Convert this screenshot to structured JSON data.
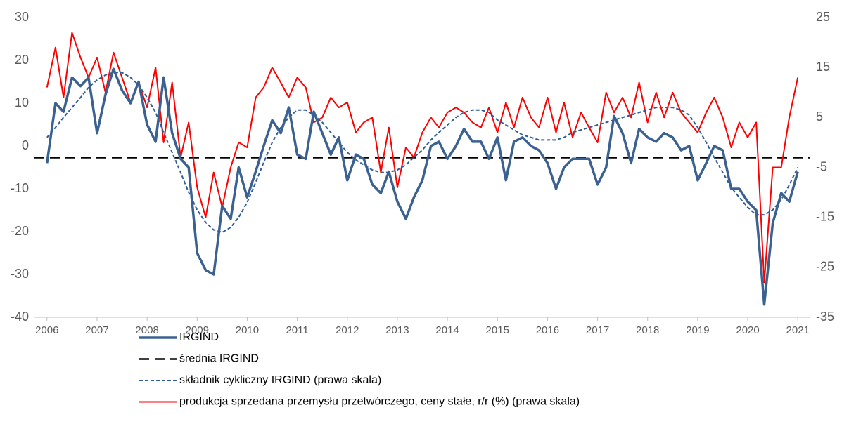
{
  "chart_data": {
    "type": "line",
    "x": [
      2006,
      2006.17,
      2006.33,
      2006.5,
      2006.67,
      2006.83,
      2007,
      2007.17,
      2007.33,
      2007.5,
      2007.67,
      2007.83,
      2008,
      2008.17,
      2008.33,
      2008.5,
      2008.67,
      2008.83,
      2009,
      2009.17,
      2009.33,
      2009.5,
      2009.67,
      2009.83,
      2010,
      2010.17,
      2010.33,
      2010.5,
      2010.67,
      2010.83,
      2011,
      2011.17,
      2011.33,
      2011.5,
      2011.67,
      2011.83,
      2012,
      2012.17,
      2012.33,
      2012.5,
      2012.67,
      2012.83,
      2013,
      2013.17,
      2013.33,
      2013.5,
      2013.67,
      2013.83,
      2014,
      2014.17,
      2014.33,
      2014.5,
      2014.67,
      2014.83,
      2015,
      2015.17,
      2015.33,
      2015.5,
      2015.67,
      2015.83,
      2016,
      2016.17,
      2016.33,
      2016.5,
      2016.67,
      2016.83,
      2017,
      2017.17,
      2017.33,
      2017.5,
      2017.67,
      2017.83,
      2018,
      2018.17,
      2018.33,
      2018.5,
      2018.67,
      2018.83,
      2019,
      2019.17,
      2019.33,
      2019.5,
      2019.67,
      2019.83,
      2020,
      2020.17,
      2020.33,
      2020.5,
      2020.67,
      2020.83,
      2021
    ],
    "xlim": [
      2005.75,
      2021.25
    ],
    "xticks": [
      2006,
      2007,
      2008,
      2009,
      2010,
      2011,
      2012,
      2013,
      2014,
      2015,
      2016,
      2017,
      2018,
      2019,
      2020,
      2021
    ],
    "ylim": [
      -40,
      30
    ],
    "yticks": [
      -40,
      -30,
      -20,
      -10,
      0,
      10,
      20,
      30
    ],
    "y2lim": [
      -35,
      25
    ],
    "y2ticks": [
      -35,
      -25,
      -15,
      -5,
      5,
      15,
      25
    ],
    "series": [
      {
        "name": "IRGIND",
        "color": "#3b6190",
        "style": "thick",
        "values": [
          -4,
          10,
          8,
          16,
          14,
          16,
          3,
          12,
          18,
          13,
          10,
          15,
          5,
          1,
          16,
          3,
          -3,
          -5,
          -25,
          -29,
          -30,
          -14,
          -17,
          -5,
          -12,
          -6,
          0,
          6,
          3,
          9,
          -2,
          -3,
          8,
          3,
          -2,
          2,
          -8,
          -2,
          -3,
          -9,
          -11,
          -6,
          -13,
          -17,
          -12,
          -8,
          0,
          1,
          -3,
          0,
          4,
          1,
          1,
          -3,
          2,
          -8,
          1,
          2,
          0,
          -1,
          -4,
          -10,
          -5,
          -3,
          -3,
          -3,
          -9,
          -5,
          7,
          3,
          -4,
          4,
          2,
          1,
          3,
          2,
          -1,
          0,
          -8,
          -4,
          0,
          -1,
          -10,
          -10,
          -13,
          -15,
          -37,
          -18,
          -11,
          -13,
          -6
        ]
      },
      {
        "name": "składnik cykliczny IRGIND (prawa skala)",
        "color": "#2e5c9a",
        "style": "dotted",
        "axis": "y2",
        "values": [
          1,
          3,
          5,
          7,
          9,
          11,
          12.5,
          13.5,
          14,
          14,
          13,
          11.5,
          9,
          6,
          2,
          -2,
          -6,
          -10,
          -13.5,
          -16,
          -17.5,
          -18,
          -17,
          -15,
          -12,
          -8,
          -4,
          0,
          3,
          5,
          6.5,
          6.5,
          5.5,
          4,
          2,
          0,
          -2,
          -3.5,
          -4.5,
          -5.5,
          -6,
          -6,
          -5.5,
          -4.5,
          -3,
          -1.5,
          0.5,
          2,
          3.5,
          5,
          6,
          6.5,
          6.5,
          6,
          4.5,
          3.5,
          2.5,
          1.5,
          1,
          0.5,
          0.5,
          0.5,
          1,
          2,
          2.5,
          3,
          3.5,
          4,
          4.5,
          5,
          5.5,
          6,
          6.5,
          7,
          7,
          7,
          6.5,
          5.5,
          3,
          0,
          -3,
          -6,
          -9,
          -11,
          -13,
          -14.5,
          -14.5,
          -13.5,
          -11.5,
          -8.5,
          -5
        ]
      },
      {
        "name": "produkcja sprzedana przemysłu przetwórczego, ceny stałe, r/r (%) (prawa skala)",
        "color": "#ff0000",
        "style": "solid",
        "axis": "y2",
        "values": [
          11,
          19,
          9,
          22,
          17,
          13,
          17,
          10,
          18,
          13,
          8,
          12,
          7,
          15,
          0,
          12,
          -3,
          4,
          -9,
          -15,
          -6,
          -13,
          -5,
          0,
          -1,
          9,
          11,
          15,
          12,
          9,
          13,
          11,
          4,
          5,
          9,
          7,
          8,
          2,
          4,
          5,
          -6,
          3,
          -9,
          -1,
          -3,
          2,
          5,
          3,
          6,
          7,
          6,
          4,
          3,
          7,
          2,
          8,
          3,
          9,
          5,
          3,
          9,
          2,
          8,
          1,
          6,
          3,
          0,
          10,
          6,
          9,
          5,
          12,
          4,
          10,
          5,
          10,
          6,
          4,
          2,
          6,
          9,
          5,
          -1,
          4,
          1,
          4,
          -28,
          -5,
          -5,
          5,
          13
        ]
      }
    ],
    "reference_line": {
      "name": "średnia IRGIND",
      "color": "#000000",
      "style": "dashed",
      "value": -2.7
    }
  }
}
